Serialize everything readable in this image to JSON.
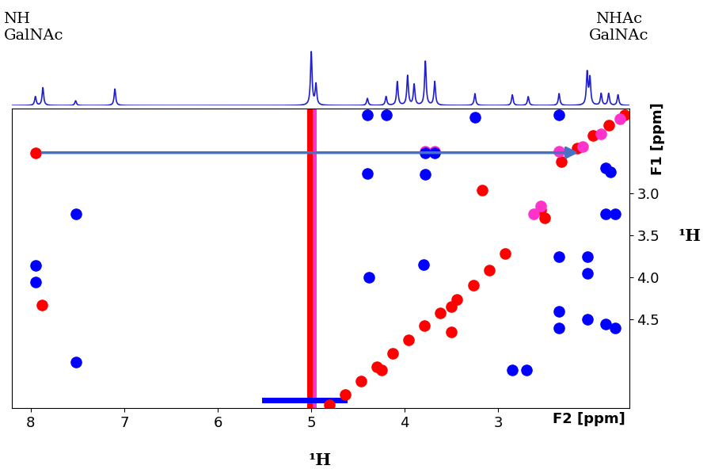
{
  "chart_data": {
    "type": "scatter",
    "xlabel": "F2 [ppm]",
    "ylabel": "F1 [ppm]",
    "x_title": "¹H",
    "y_title": "¹H",
    "annotations": [
      {
        "text": "NH\nGalNAc"
      },
      {
        "text": "NHAc\nGalNAc"
      }
    ],
    "xlim": [
      8.2,
      1.6
    ],
    "ylim": [
      5.55,
      2.0
    ],
    "xticks": [
      8,
      7,
      6,
      5,
      4,
      3
    ],
    "yticks": [
      {
        "value": 3,
        "label": "3.0"
      },
      3.5,
      {
        "value": 4,
        "label": "4.0"
      },
      4.5
    ],
    "arrow": {
      "from": [
        7.9,
        2.52
      ],
      "to": [
        2.12,
        2.52
      ],
      "color": "#4472c4"
    },
    "projection": {
      "color": "#1f1fd0",
      "ylim": [
        0,
        1
      ],
      "x": [
        7.95,
        7.87,
        7.52,
        7.1,
        5.0,
        4.95,
        4.4,
        4.2,
        4.08,
        3.97,
        3.9,
        3.78,
        3.68,
        3.25,
        2.85,
        2.68,
        2.35,
        2.05,
        2.02,
        1.9,
        1.82,
        1.72
      ],
      "values": [
        0.15,
        0.3,
        0.08,
        0.28,
        0.9,
        0.35,
        0.12,
        0.15,
        0.4,
        0.5,
        0.35,
        0.75,
        0.4,
        0.2,
        0.18,
        0.15,
        0.2,
        0.55,
        0.45,
        0.2,
        0.2,
        0.18
      ]
    },
    "series": [
      {
        "type": "line",
        "color": "#ff33cc",
        "x": [
          4.98,
          4.98
        ],
        "y": [
          5.55,
          2.0
        ]
      },
      {
        "type": "line",
        "color": "#ff0000",
        "x": [
          5.02,
          5.02
        ],
        "y": [
          5.55,
          2.0
        ]
      },
      {
        "type": "line",
        "color": "#0000ff",
        "x": [
          5.5,
          4.65
        ],
        "y": [
          5.45,
          5.45
        ]
      },
      {
        "type": "scatter",
        "color": "#ff0000",
        "marker": "o",
        "x": [
          1.65,
          1.82,
          1.99,
          2.16,
          2.33,
          2.55,
          2.5,
          3.17,
          2.93,
          3.1,
          3.27,
          3.44,
          3.62,
          3.79,
          3.96,
          4.13,
          4.3,
          4.47,
          4.64,
          4.81,
          7.95,
          7.88,
          3.5,
          3.5,
          4.25
        ],
        "y": [
          2.07,
          2.19,
          2.32,
          2.47,
          2.63,
          3.2,
          3.29,
          2.96,
          3.72,
          3.91,
          4.09,
          4.26,
          4.42,
          4.57,
          4.74,
          4.9,
          5.06,
          5.23,
          5.39,
          5.51,
          2.52,
          4.33,
          4.35,
          4.65,
          5.1
        ]
      },
      {
        "type": "scatter",
        "color": "#ff33cc",
        "marker": "o",
        "x": [
          1.7,
          1.9,
          2.1,
          2.35,
          2.55,
          2.62,
          3.78,
          3.68
        ],
        "y": [
          2.12,
          2.3,
          2.45,
          2.5,
          3.15,
          3.25,
          2.5,
          2.5
        ]
      },
      {
        "type": "scatter",
        "color": "#0000ff",
        "marker": "o",
        "x": [
          7.95,
          7.95,
          7.52,
          7.52,
          4.4,
          4.4,
          4.2,
          3.78,
          3.68,
          3.78,
          3.25,
          3.8,
          2.35,
          2.35,
          2.35,
          2.35,
          2.05,
          2.05,
          2.05,
          1.85,
          1.75,
          1.85,
          1.75,
          1.85,
          1.8,
          2.85,
          2.7,
          4.38
        ],
        "y": [
          3.86,
          4.05,
          3.25,
          5.0,
          2.07,
          2.77,
          2.07,
          2.52,
          2.52,
          2.78,
          2.1,
          3.85,
          2.07,
          3.75,
          4.4,
          4.6,
          3.75,
          3.95,
          4.5,
          3.25,
          3.25,
          4.55,
          4.6,
          2.7,
          2.75,
          5.1,
          5.1,
          4.0
        ]
      }
    ]
  }
}
